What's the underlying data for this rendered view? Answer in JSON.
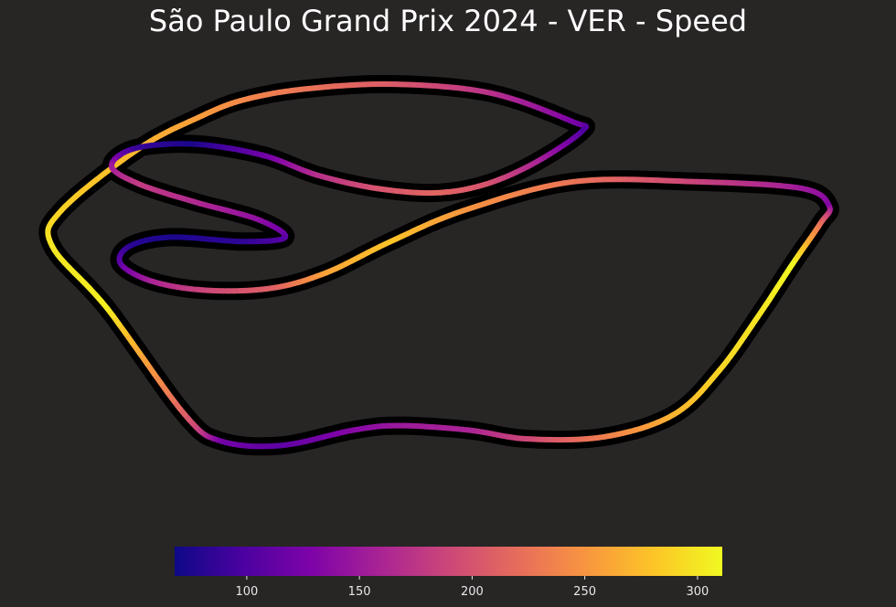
{
  "chart_data": {
    "type": "line",
    "title": "São Paulo Grand Prix 2024 - VER - Speed",
    "xlabel": "",
    "ylabel": "",
    "colormap": "plasma",
    "background": "#282525",
    "track_color": "#000000",
    "colorbar": {
      "min": 68,
      "max": 311,
      "ticks": [
        100,
        150,
        200,
        250,
        300
      ],
      "tick_labels": [
        "100",
        "150",
        "200",
        "250",
        "300"
      ]
    },
    "x": [
      -0.6,
      -0.4,
      1.3,
      2.6,
      3.6,
      5.0,
      6.9,
      9.0,
      10.8,
      11.0,
      10.0,
      8.9,
      7.8,
      6.5,
      5.2,
      4.0,
      2.5,
      1.2,
      0.7,
      1.3,
      2.5,
      3.9,
      4.5,
      3.6,
      2.0,
      1.1,
      0.9,
      1.6,
      2.8,
      4.2,
      5.4,
      6.8,
      8.4,
      10.8,
      13.5,
      15.8,
      16.4,
      16.2,
      15.6,
      14.9,
      14.0,
      13.0,
      11.5,
      9.8,
      8.5,
      7.0,
      6.0,
      4.4,
      3.1,
      2.3,
      0.6
    ],
    "y": [
      6.4,
      7.2,
      8.6,
      9.3,
      9.7,
      9.95,
      10.05,
      9.85,
      9.2,
      9.0,
      8.3,
      7.8,
      7.6,
      7.7,
      8.0,
      8.45,
      8.7,
      8.6,
      8.2,
      7.8,
      7.4,
      7.0,
      6.6,
      6.5,
      6.6,
      6.4,
      6.0,
      5.6,
      5.4,
      5.45,
      5.8,
      6.5,
      7.2,
      7.85,
      7.85,
      7.7,
      7.3,
      6.9,
      6.0,
      4.9,
      3.6,
      2.6,
      2.1,
      2.05,
      2.25,
      2.35,
      2.25,
      1.9,
      2.0,
      2.6,
      5.0
    ],
    "speed": [
      300,
      288,
      270,
      255,
      240,
      225,
      205,
      170,
      125,
      100,
      160,
      200,
      215,
      200,
      170,
      120,
      75,
      90,
      150,
      180,
      165,
      140,
      110,
      85,
      75,
      82,
      110,
      160,
      190,
      210,
      260,
      280,
      250,
      225,
      185,
      150,
      132,
      220,
      310,
      300,
      290,
      270,
      235,
      190,
      160,
      150,
      135,
      110,
      122,
      210,
      305
    ]
  }
}
